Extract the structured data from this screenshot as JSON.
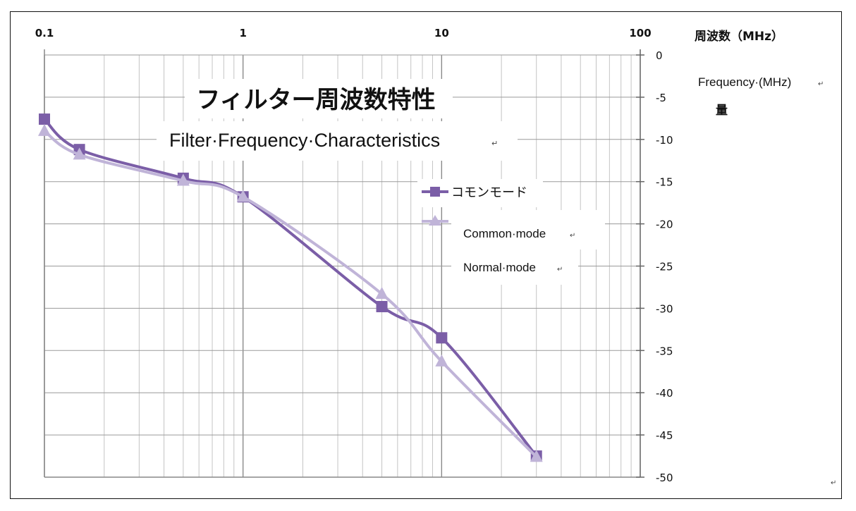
{
  "chart_data": {
    "type": "line",
    "title_jp": "フィルター周波数特性",
    "title_en": "Filter·Frequency·Characteristics",
    "xlabel_jp": "周波数（MHz）",
    "xlabel_en": "Frequency·(MHz)",
    "ylabel_fragment": "量",
    "x_scale": "log",
    "xlim": [
      0.1,
      100
    ],
    "ylim": [
      -50,
      0
    ],
    "x_ticks": [
      "0.1",
      "1",
      "10",
      "100"
    ],
    "y_ticks": [
      0,
      -5,
      -10,
      -15,
      -20,
      -25,
      -30,
      -35,
      -40,
      -45,
      -50
    ],
    "grid": true,
    "legend_placement": "center-right",
    "series": [
      {
        "name": "コモンモード",
        "color": "#7b5ea7",
        "marker": "square",
        "x": [
          0.1,
          0.15,
          0.5,
          1,
          5,
          10,
          30
        ],
        "y": [
          -7.6,
          -11.2,
          -14.6,
          -16.8,
          -29.8,
          -33.5,
          -47.5
        ]
      },
      {
        "name": "",
        "color": "#c0b4d8",
        "marker": "triangle",
        "x": [
          0.1,
          0.15,
          0.5,
          1,
          5,
          10,
          30
        ],
        "y": [
          -9.0,
          -11.8,
          -14.9,
          -16.8,
          -28.3,
          -36.3,
          -47.6
        ]
      }
    ],
    "legend_overlay": [
      "Common·mode",
      "Normal·mode"
    ],
    "return_mark": "↵"
  }
}
